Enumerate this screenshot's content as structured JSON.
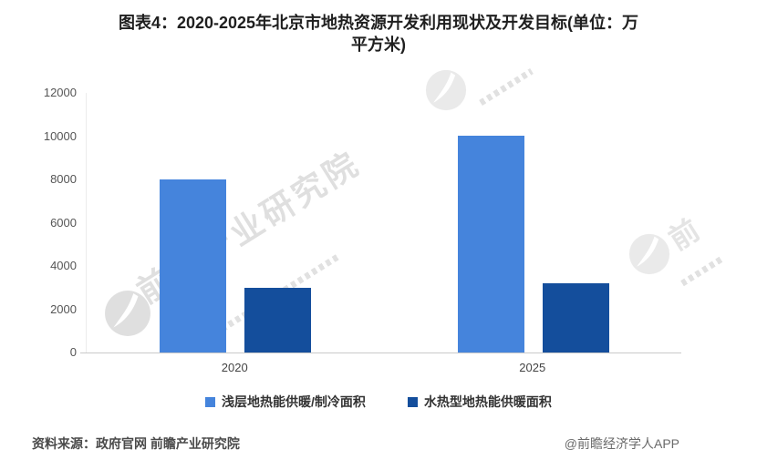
{
  "title": {
    "line1": "图表4：2020-2025年北京市地热资源开发利用现状及开发目标(单位：万",
    "line2": "平方米)"
  },
  "chart_data": {
    "type": "bar",
    "title": "图表4：2020-2025年北京市地热资源开发利用现状及开发目标(单位：万平方米)",
    "categories": [
      "2020",
      "2025"
    ],
    "series": [
      {
        "name": "浅层地热能供暖/制冷面积",
        "values": [
          8000,
          10000
        ],
        "color": "#4584DC"
      },
      {
        "name": "水热型地热能供暖面积",
        "values": [
          3000,
          3200
        ],
        "color": "#144E9C"
      }
    ],
    "xlabel": "",
    "ylabel": "",
    "ylim": [
      0,
      12000
    ],
    "yticks": [
      0,
      2000,
      4000,
      6000,
      8000,
      10000,
      12000
    ],
    "grid": false,
    "legend_position": "bottom"
  },
  "watermark": {
    "text": "前瞻产业研究院",
    "partial_char": "前"
  },
  "footer": {
    "source": "资料来源：政府官网 前瞻产业研究院",
    "credit": "@前瞻经济学人APP"
  }
}
